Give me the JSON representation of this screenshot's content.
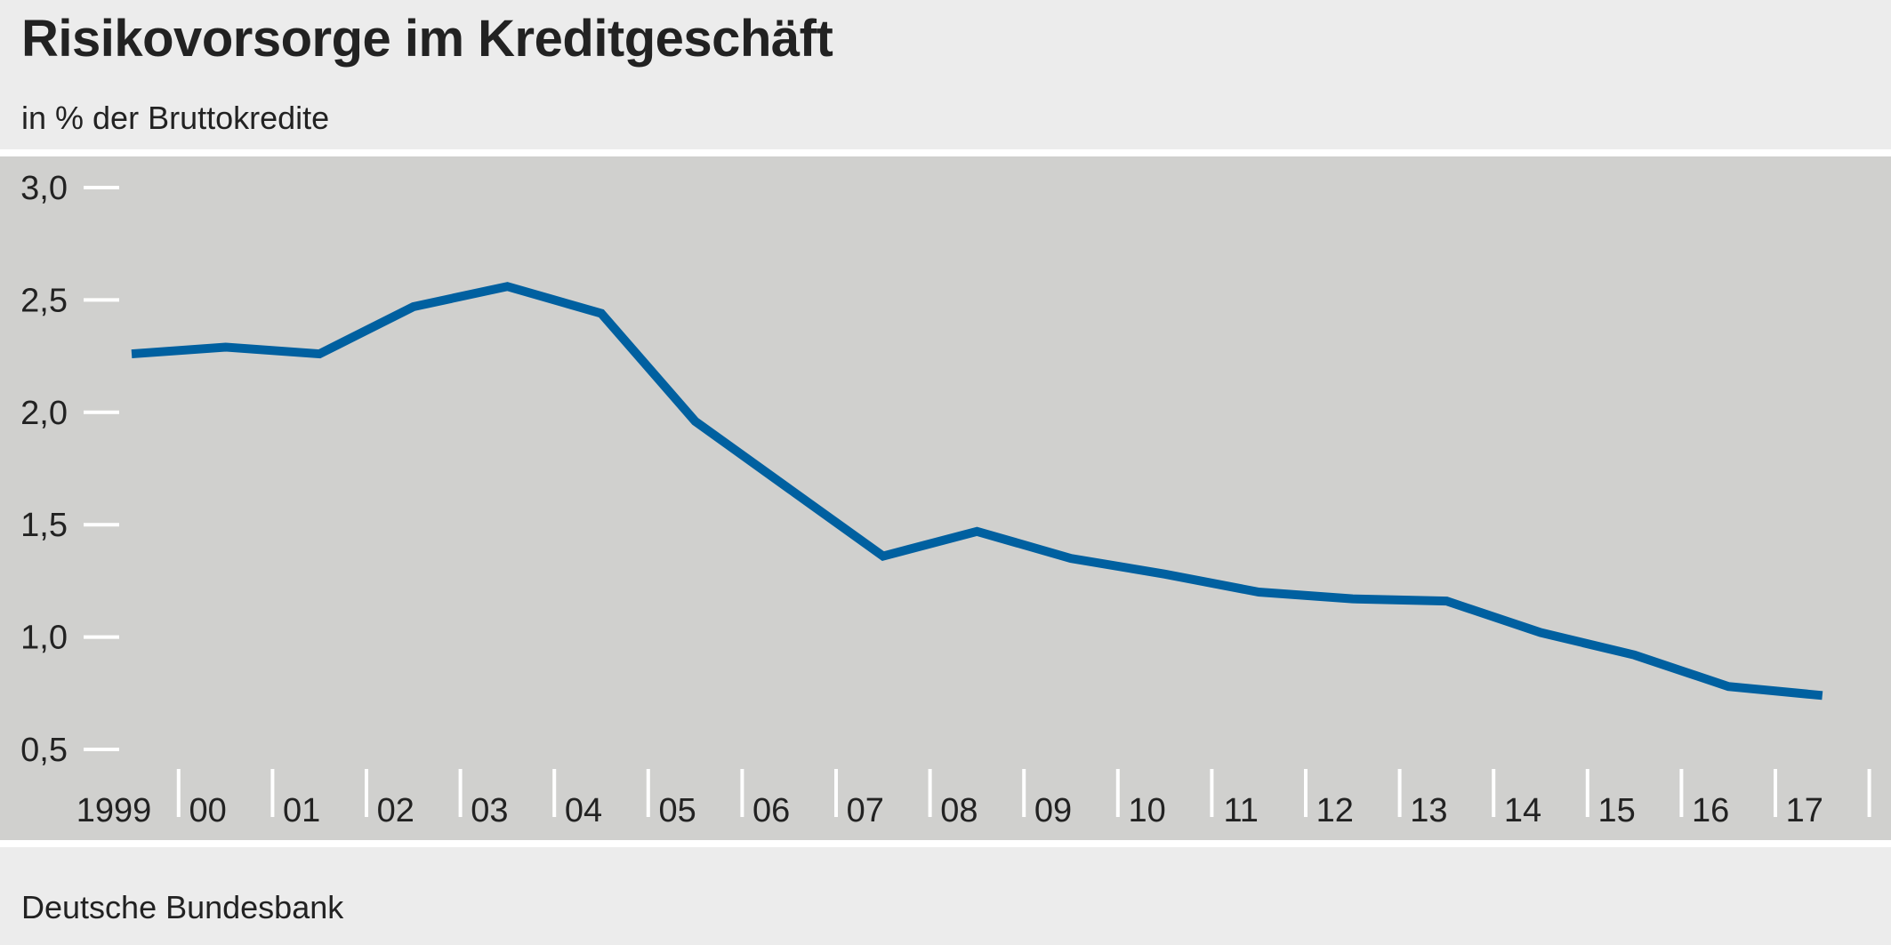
{
  "chart_data": {
    "type": "line",
    "title": "Risikovorsorge im Kreditgeschäft",
    "subtitle": "in % der Bruttokredite",
    "xlabel": "",
    "ylabel": "",
    "ylim": [
      0.5,
      3.0
    ],
    "y_ticks": [
      {
        "value": 3.0,
        "label": "3,0"
      },
      {
        "value": 2.5,
        "label": "2,5"
      },
      {
        "value": 2.0,
        "label": "2,0"
      },
      {
        "value": 1.5,
        "label": "1,5"
      },
      {
        "value": 1.0,
        "label": "1,0"
      },
      {
        "value": 0.5,
        "label": "0,5"
      }
    ],
    "categories": [
      "1999",
      "00",
      "01",
      "02",
      "03",
      "04",
      "05",
      "06",
      "07",
      "08",
      "09",
      "10",
      "11",
      "12",
      "13",
      "14",
      "15",
      "16",
      "17"
    ],
    "series": [
      {
        "color": "#0060a0",
        "values": [
          2.26,
          2.29,
          2.26,
          2.47,
          2.56,
          2.44,
          1.96,
          1.66,
          1.36,
          1.47,
          1.35,
          1.28,
          1.2,
          1.17,
          1.16,
          1.02,
          0.92,
          0.78,
          0.74
        ]
      }
    ],
    "grid": false,
    "source": "Deutsche Bundesbank"
  }
}
